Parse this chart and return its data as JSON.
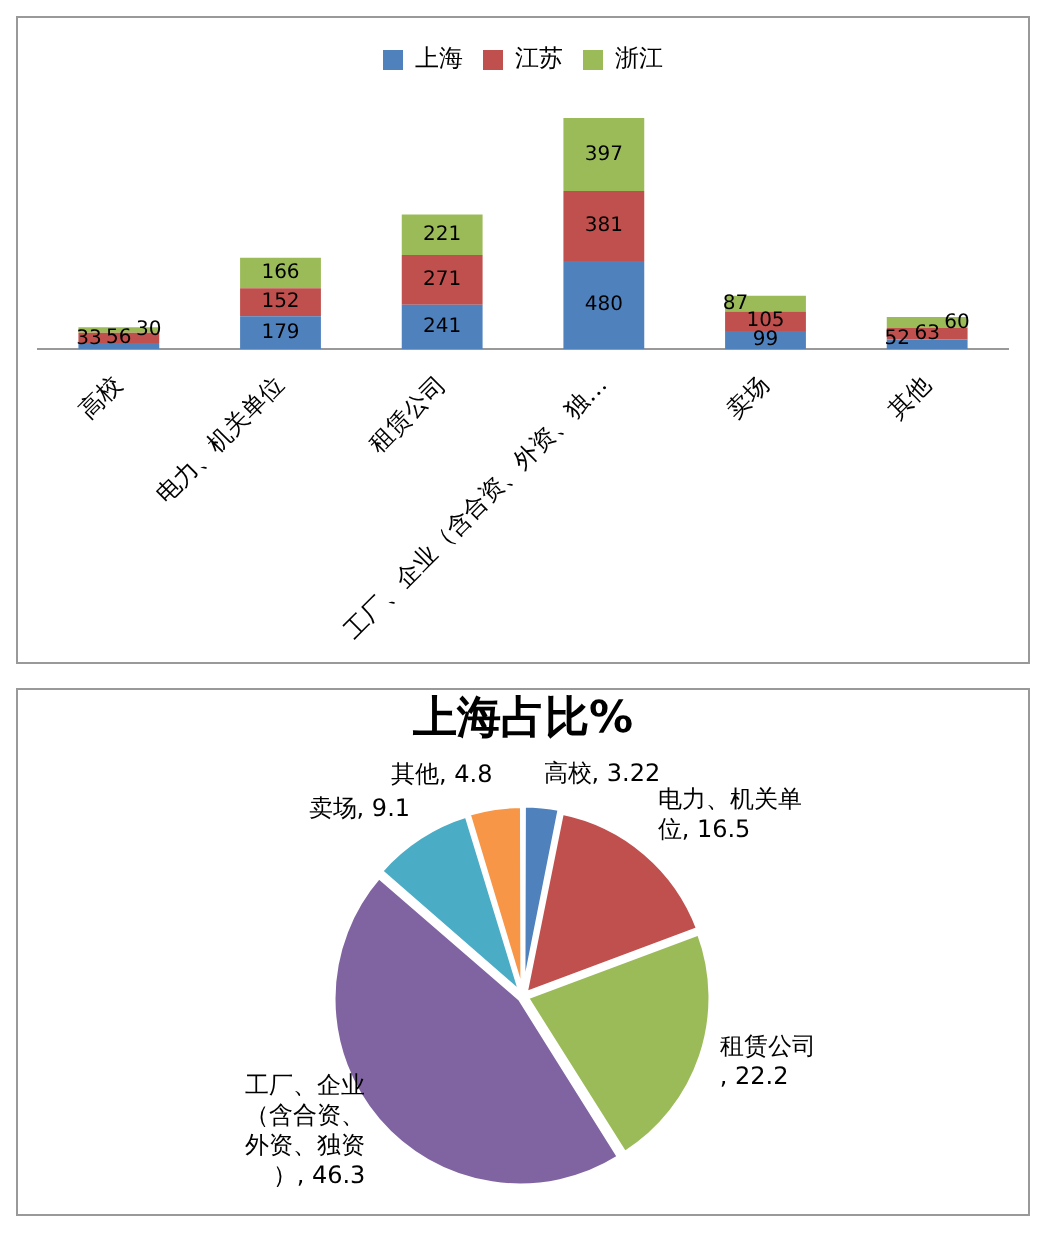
{
  "chart_data": [
    {
      "type": "bar",
      "stacked": true,
      "categories": [
        "高校",
        "电力、机关单位",
        "租赁公司",
        "工厂、企业（含合资、外资、独…",
        "卖场",
        "其他"
      ],
      "series": [
        {
          "name": "上海",
          "color": "#4f81bd",
          "values": [
            33,
            179,
            241,
            480,
            99,
            52
          ]
        },
        {
          "name": "江苏",
          "color": "#c0504d",
          "values": [
            56,
            152,
            271,
            381,
            105,
            63
          ]
        },
        {
          "name": "浙江",
          "color": "#9bbb59",
          "values": [
            30,
            166,
            221,
            397,
            87,
            60
          ]
        }
      ],
      "data_labels": true,
      "legend": "top",
      "grid": false,
      "tick_labels": "x"
    },
    {
      "type": "pie",
      "title": "上海占比%",
      "categories": [
        "高校",
        "电力、机关单位",
        "租赁公司",
        "工厂、企业（含合资、外资、独资）",
        "卖场",
        "其他"
      ],
      "values": [
        3.22,
        16.5,
        22.2,
        46.3,
        9.1,
        4.8
      ],
      "colors": [
        "#4f81bd",
        "#c0504d",
        "#9bbb59",
        "#8064a2",
        "#4bacc6",
        "#f79646"
      ],
      "value_labels": [
        ", 3.22",
        ", 16.5",
        ", 22.2",
        ", 46.3",
        ", 9.1",
        ", 4.8"
      ],
      "data_labels": true,
      "legend": false
    }
  ]
}
